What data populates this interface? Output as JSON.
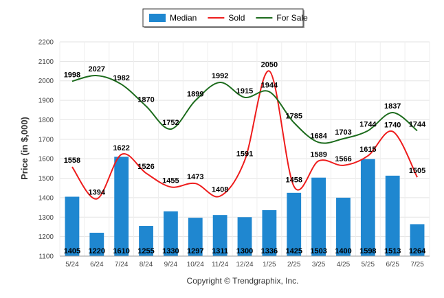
{
  "chart_data": {
    "type": "bar",
    "categories": [
      "5/24",
      "6/24",
      "7/24",
      "8/24",
      "9/24",
      "10/24",
      "11/24",
      "12/24",
      "1/25",
      "2/25",
      "3/25",
      "4/25",
      "5/25",
      "6/25",
      "7/25"
    ],
    "ylabel": "Price (in $,000)",
    "ylim": [
      1100,
      2200
    ],
    "yticks": [
      1100,
      1200,
      1300,
      1400,
      1500,
      1600,
      1700,
      1800,
      1900,
      2000,
      2100,
      2200
    ],
    "grid": true,
    "legend": "top-center",
    "series": [
      {
        "name": "Median",
        "kind": "bar",
        "color": "#1f87d0",
        "values": [
          1405,
          1220,
          1610,
          1255,
          1330,
          1297,
          1311,
          1300,
          1336,
          1425,
          1503,
          1400,
          1598,
          1513,
          1264
        ]
      },
      {
        "name": "Sold",
        "kind": "line",
        "color": "#ee1c1c",
        "values": [
          1558,
          1394,
          1622,
          1526,
          1455,
          1473,
          1408,
          1591,
          2050,
          1458,
          1589,
          1566,
          1615,
          1740,
          1505
        ]
      },
      {
        "name": "For Sale",
        "kind": "line",
        "color": "#1c6b1c",
        "values": [
          1998,
          2027,
          1982,
          1870,
          1752,
          1899,
          1992,
          1915,
          1944,
          1785,
          1684,
          1703,
          1744,
          1837,
          1744
        ]
      }
    ]
  },
  "footer": "Copyright © Trendgraphix, Inc."
}
